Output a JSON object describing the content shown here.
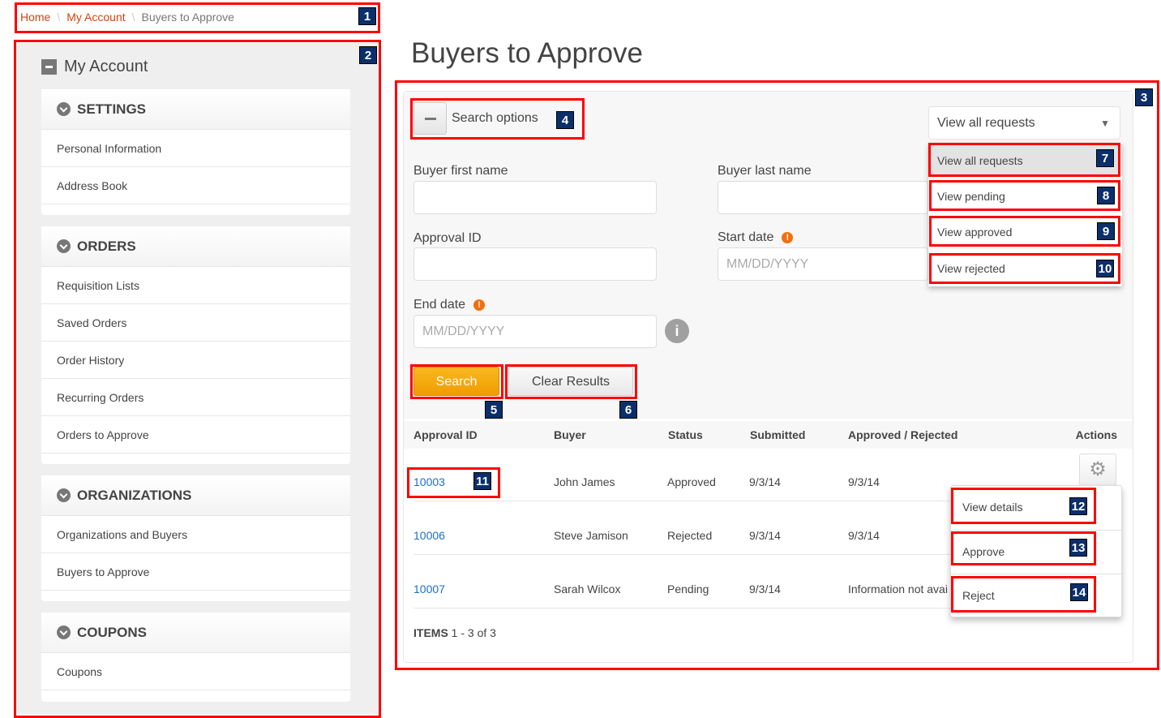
{
  "breadcrumb": {
    "items": [
      "Home",
      "My Account"
    ],
    "current": "Buyers to Approve",
    "separator": "\\"
  },
  "sidebar": {
    "title": "My Account",
    "sections": [
      {
        "title": "SETTINGS",
        "items": [
          "Personal Information",
          "Address Book"
        ]
      },
      {
        "title": "ORDERS",
        "items": [
          "Requisition Lists",
          "Saved Orders",
          "Order History",
          "Recurring Orders",
          "Orders to Approve"
        ]
      },
      {
        "title": "ORGANIZATIONS",
        "items": [
          "Organizations and Buyers",
          "Buyers to Approve"
        ]
      },
      {
        "title": "COUPONS",
        "items": [
          "Coupons"
        ]
      }
    ]
  },
  "page": {
    "title": "Buyers to Approve"
  },
  "search": {
    "toggle_label": "Search options",
    "first_name_label": "Buyer first name",
    "first_name_value": "",
    "last_name_label": "Buyer last name",
    "last_name_value": "",
    "approval_id_label": "Approval ID",
    "approval_id_value": "",
    "start_date_label": "Start date",
    "start_date_placeholder": "MM/DD/YYYY",
    "end_date_label": "End date",
    "end_date_placeholder": "MM/DD/YYYY",
    "search_button": "Search",
    "clear_button": "Clear Results",
    "filter_selected": "View all requests",
    "filter_options": [
      "View all requests",
      "View pending",
      "View approved",
      "View rejected"
    ]
  },
  "table": {
    "headers": [
      "Approval ID",
      "Buyer",
      "Status",
      "Submitted",
      "Approved / Rejected",
      "Actions"
    ],
    "rows": [
      [
        "10003",
        "John James",
        "Approved",
        "9/3/14",
        "9/3/14"
      ],
      [
        "10006",
        "Steve Jamison",
        "Rejected",
        "9/3/14",
        "9/3/14"
      ],
      [
        "10007",
        "Sarah Wilcox",
        "Pending",
        "9/3/14",
        "Information not avai"
      ]
    ],
    "actions_menu": [
      "View details",
      "Approve",
      "Reject"
    ],
    "items_label": "ITEMS",
    "items_range": "1 - 3 of 3"
  },
  "annotations": [
    "1",
    "2",
    "3",
    "4",
    "5",
    "6",
    "7",
    "8",
    "9",
    "10",
    "11",
    "12",
    "13",
    "14"
  ],
  "colors": {
    "accent": "#d4430e",
    "annotation": "#ff0000",
    "badge": "#0b2f6b",
    "search_button": "#f5a800",
    "link": "#1a6fc9"
  }
}
